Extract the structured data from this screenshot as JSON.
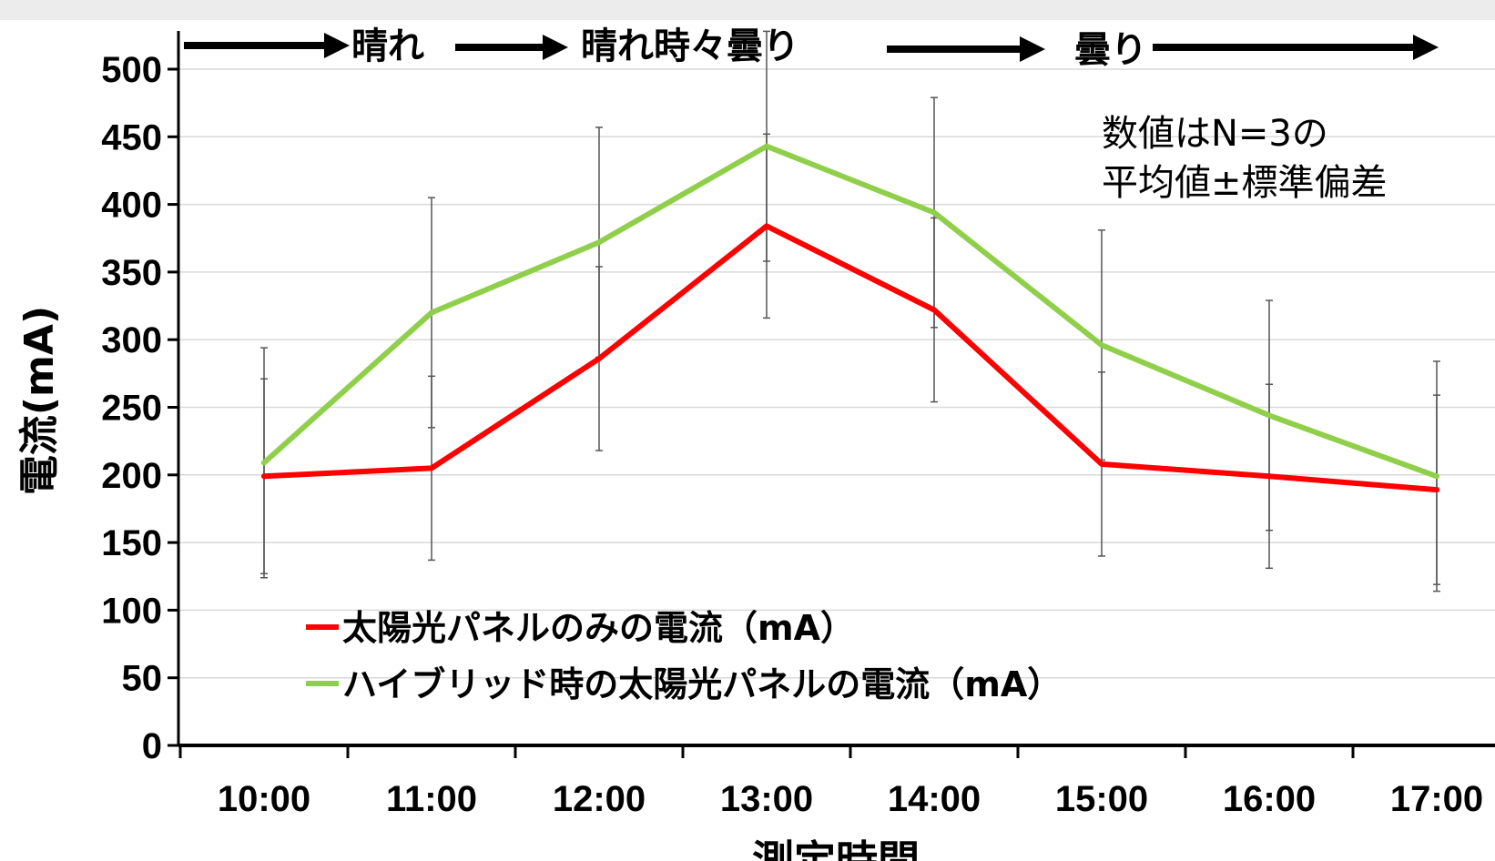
{
  "chart_data": {
    "type": "line",
    "categories": [
      "10:00",
      "11:00",
      "12:00",
      "13:00",
      "14:00",
      "15:00",
      "16:00",
      "17:00"
    ],
    "ylabel": "電流(mA)",
    "xlabel": "測定時間",
    "ylim": [
      0,
      500
    ],
    "yticks": [
      0,
      50,
      100,
      150,
      200,
      250,
      300,
      350,
      400,
      450,
      500
    ],
    "grid": true,
    "legend_position": "bottom-left",
    "series": [
      {
        "name": "太陽光パネルのみの電流（mA）",
        "color": "#ff0000",
        "values": [
          199,
          205,
          286,
          384,
          322,
          208,
          199,
          189
        ],
        "error": [
          72,
          68,
          68,
          68,
          68,
          68,
          68,
          70
        ]
      },
      {
        "name": "ハイブリッド時の太陽光パネルの電流（mA）",
        "color": "#8fcf4a",
        "values": [
          209,
          320,
          372,
          443,
          394,
          296,
          244,
          199
        ],
        "error": [
          85,
          85,
          85,
          85,
          85,
          85,
          85,
          85
        ]
      }
    ],
    "annotations": {
      "weather": [
        "晴れ",
        "晴れ時々曇り",
        "曇り"
      ],
      "note_lines": [
        "数値はN=3の",
        "平均値±標準偏差"
      ]
    }
  }
}
